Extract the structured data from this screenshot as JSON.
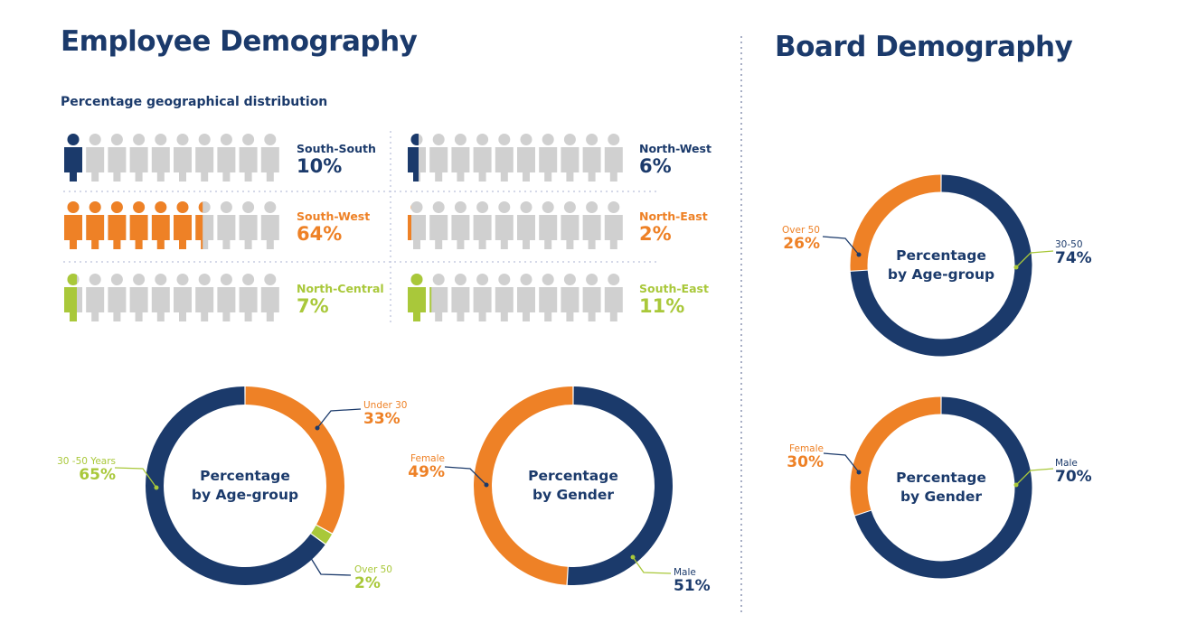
{
  "colors": {
    "navy": "#1b3a6b",
    "orange": "#ee8126",
    "green": "#a9c83a",
    "gray": "#d0d0d0"
  },
  "employee": {
    "title": "Employee Demography",
    "geo_subtitle": "Percentage geographical distribution"
  },
  "board": {
    "title": "Board Demography"
  },
  "chart_data": [
    {
      "type": "pictogram",
      "title": "Percentage geographical distribution",
      "unit_per_icon": 10,
      "icons_per_row": 10,
      "categories": [
        "South-South",
        "North-West",
        "South-West",
        "North-East",
        "North-Central",
        "South-East"
      ],
      "values": [
        10,
        6,
        64,
        2,
        7,
        11
      ],
      "labels": [
        "10%",
        "6%",
        "64%",
        "2%",
        "7%",
        "11%"
      ],
      "colors": [
        "#1b3a6b",
        "#1b3a6b",
        "#ee8126",
        "#ee8126",
        "#a9c83a",
        "#a9c83a"
      ]
    },
    {
      "type": "pie",
      "donut": true,
      "title": "Percentage by Age-group",
      "title_lines": [
        "Percentage",
        "by Age-group"
      ],
      "group": "Employee",
      "categories": [
        "Under 30",
        "Over 50",
        "30 -50 Years"
      ],
      "values": [
        33,
        2,
        65
      ],
      "labels": [
        "33%",
        "2%",
        "65%"
      ],
      "colors": [
        "#ee8126",
        "#a9c83a",
        "#1b3a6b"
      ],
      "label_colors": [
        "#ee8126",
        "#a9c83a",
        "#a9c83a"
      ]
    },
    {
      "type": "pie",
      "donut": true,
      "title": "Percentage by Gender",
      "title_lines": [
        "Percentage",
        "by Gender"
      ],
      "group": "Employee",
      "categories": [
        "Male",
        "Female"
      ],
      "values": [
        51,
        49
      ],
      "labels": [
        "51%",
        "49%"
      ],
      "colors": [
        "#1b3a6b",
        "#ee8126"
      ],
      "label_colors": [
        "#1b3a6b",
        "#ee8126"
      ]
    },
    {
      "type": "pie",
      "donut": true,
      "title": "Percentage by Age-group",
      "title_lines": [
        "Percentage",
        "by Age-group"
      ],
      "group": "Board",
      "categories": [
        "30-50",
        "Over 50"
      ],
      "values": [
        74,
        26
      ],
      "labels": [
        "74%",
        "26%"
      ],
      "colors": [
        "#1b3a6b",
        "#ee8126"
      ],
      "label_colors": [
        "#1b3a6b",
        "#ee8126"
      ]
    },
    {
      "type": "pie",
      "donut": true,
      "title": "Percentage by Gender",
      "title_lines": [
        "Percentage",
        "by Gender"
      ],
      "group": "Board",
      "categories": [
        "Male",
        "Female"
      ],
      "values": [
        70,
        30
      ],
      "labels": [
        "70%",
        "30%"
      ],
      "colors": [
        "#1b3a6b",
        "#ee8126"
      ],
      "label_colors": [
        "#1b3a6b",
        "#ee8126"
      ]
    }
  ]
}
